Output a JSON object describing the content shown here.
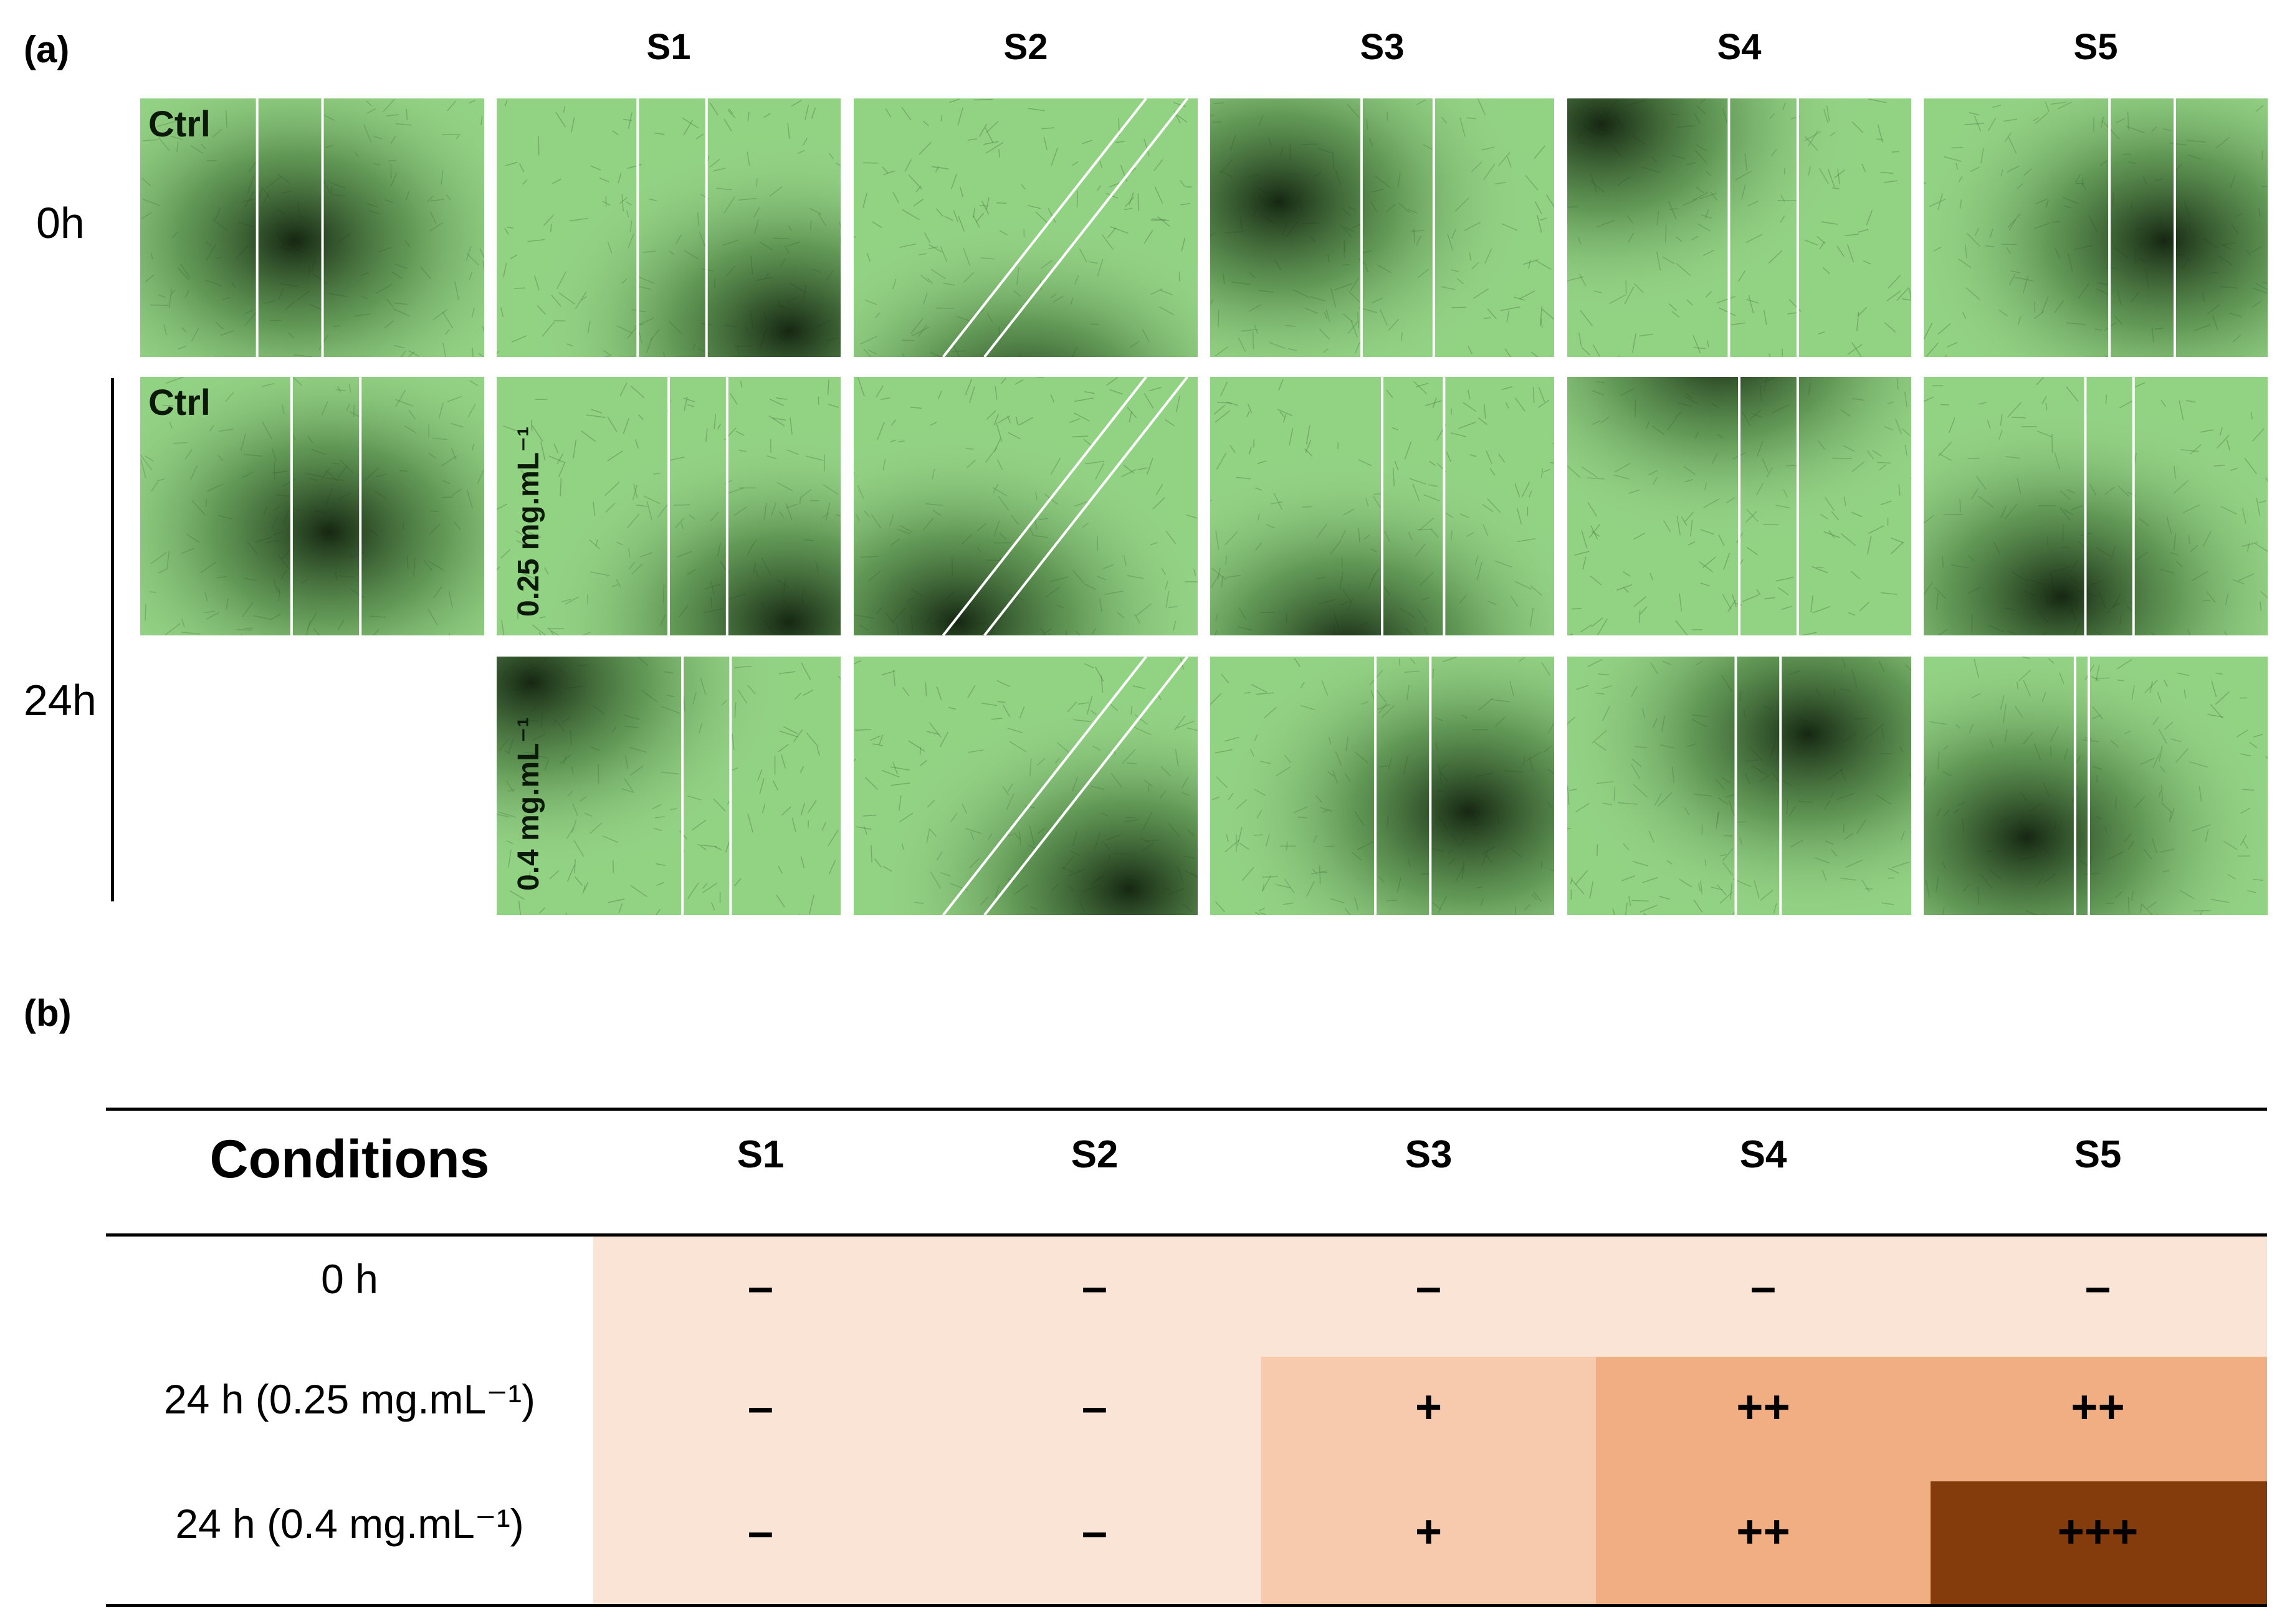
{
  "panel_a": {
    "label": "(a)",
    "columns": [
      "S1",
      "S2",
      "S3",
      "S4",
      "S5"
    ],
    "row_labels": {
      "t0": "0h",
      "t24": "24h"
    },
    "ctrl_label": "Ctrl",
    "conc_labels": [
      "0.25 mg.mL⁻¹",
      "0.4 mg.mL⁻¹"
    ]
  },
  "panel_b": {
    "label": "(b)",
    "header": {
      "conditions": "Conditions",
      "columns": [
        "S1",
        "S2",
        "S3",
        "S4",
        "S5"
      ]
    },
    "rows": [
      {
        "condition": "0 h",
        "values": [
          "–",
          "–",
          "–",
          "–",
          "–"
        ]
      },
      {
        "condition": "24 h (0.25 mg.mL⁻¹)",
        "values": [
          "–",
          "–",
          "+",
          "++",
          "++"
        ]
      },
      {
        "condition": "24 h (0.4 mg.mL⁻¹)",
        "values": [
          "–",
          "–",
          "+",
          "++",
          "+++"
        ]
      }
    ],
    "colors": {
      "none": "#f9e4d6",
      "low": "#f7c9ad",
      "mid": "#f1ae82",
      "high": "#843c0c"
    }
  }
}
